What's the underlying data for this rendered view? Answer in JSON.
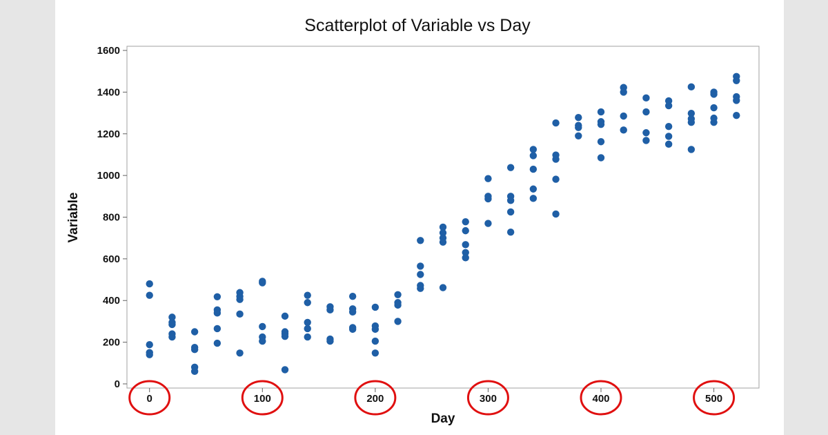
{
  "chart_data": {
    "type": "scatter",
    "title": "Scatterplot of Variable vs Day",
    "xlabel": "Day",
    "ylabel": "Variable",
    "xlim": [
      -20,
      540
    ],
    "ylim": [
      -20,
      1620
    ],
    "xticks": [
      0,
      100,
      200,
      300,
      400,
      500
    ],
    "yticks": [
      0,
      200,
      400,
      600,
      800,
      1000,
      1200,
      1400,
      1600
    ],
    "grid": false,
    "legend": "none",
    "marker_color": "#1f5fa6",
    "highlight_color": "#e01010",
    "highlighted_ticks": [
      0,
      100,
      200,
      300,
      400,
      500
    ],
    "points": [
      [
        0,
        480
      ],
      [
        0,
        425
      ],
      [
        0,
        188
      ],
      [
        0,
        150
      ],
      [
        0,
        140
      ],
      [
        20,
        320
      ],
      [
        20,
        295
      ],
      [
        20,
        285
      ],
      [
        20,
        240
      ],
      [
        20,
        225
      ],
      [
        40,
        250
      ],
      [
        40,
        175
      ],
      [
        40,
        165
      ],
      [
        40,
        80
      ],
      [
        40,
        60
      ],
      [
        60,
        418
      ],
      [
        60,
        355
      ],
      [
        60,
        340
      ],
      [
        60,
        265
      ],
      [
        60,
        195
      ],
      [
        80,
        438
      ],
      [
        80,
        420
      ],
      [
        80,
        405
      ],
      [
        80,
        335
      ],
      [
        80,
        148
      ],
      [
        100,
        492
      ],
      [
        100,
        485
      ],
      [
        100,
        275
      ],
      [
        100,
        225
      ],
      [
        100,
        205
      ],
      [
        120,
        325
      ],
      [
        120,
        250
      ],
      [
        120,
        240
      ],
      [
        120,
        228
      ],
      [
        120,
        68
      ],
      [
        140,
        425
      ],
      [
        140,
        390
      ],
      [
        140,
        295
      ],
      [
        140,
        265
      ],
      [
        140,
        225
      ],
      [
        160,
        370
      ],
      [
        160,
        355
      ],
      [
        160,
        215
      ],
      [
        160,
        205
      ],
      [
        180,
        420
      ],
      [
        180,
        360
      ],
      [
        180,
        345
      ],
      [
        180,
        270
      ],
      [
        180,
        262
      ],
      [
        200,
        368
      ],
      [
        200,
        278
      ],
      [
        200,
        262
      ],
      [
        200,
        205
      ],
      [
        200,
        148
      ],
      [
        220,
        428
      ],
      [
        220,
        390
      ],
      [
        220,
        378
      ],
      [
        220,
        300
      ],
      [
        240,
        688
      ],
      [
        240,
        565
      ],
      [
        240,
        525
      ],
      [
        240,
        472
      ],
      [
        240,
        458
      ],
      [
        260,
        752
      ],
      [
        260,
        725
      ],
      [
        260,
        700
      ],
      [
        260,
        680
      ],
      [
        260,
        462
      ],
      [
        280,
        778
      ],
      [
        280,
        735
      ],
      [
        280,
        668
      ],
      [
        280,
        630
      ],
      [
        280,
        605
      ],
      [
        300,
        985
      ],
      [
        300,
        900
      ],
      [
        300,
        888
      ],
      [
        300,
        770
      ],
      [
        320,
        1038
      ],
      [
        320,
        900
      ],
      [
        320,
        880
      ],
      [
        320,
        825
      ],
      [
        320,
        728
      ],
      [
        340,
        1125
      ],
      [
        340,
        1095
      ],
      [
        340,
        1030
      ],
      [
        340,
        935
      ],
      [
        340,
        890
      ],
      [
        360,
        1252
      ],
      [
        360,
        1098
      ],
      [
        360,
        1078
      ],
      [
        360,
        982
      ],
      [
        360,
        815
      ],
      [
        380,
        1278
      ],
      [
        380,
        1240
      ],
      [
        380,
        1230
      ],
      [
        380,
        1190
      ],
      [
        400,
        1305
      ],
      [
        400,
        1258
      ],
      [
        400,
        1245
      ],
      [
        400,
        1162
      ],
      [
        400,
        1085
      ],
      [
        420,
        1422
      ],
      [
        420,
        1400
      ],
      [
        420,
        1285
      ],
      [
        420,
        1218
      ],
      [
        440,
        1372
      ],
      [
        440,
        1305
      ],
      [
        440,
        1205
      ],
      [
        440,
        1168
      ],
      [
        460,
        1358
      ],
      [
        460,
        1335
      ],
      [
        460,
        1235
      ],
      [
        460,
        1188
      ],
      [
        460,
        1150
      ],
      [
        480,
        1425
      ],
      [
        480,
        1298
      ],
      [
        480,
        1272
      ],
      [
        480,
        1255
      ],
      [
        480,
        1125
      ],
      [
        500,
        1400
      ],
      [
        500,
        1390
      ],
      [
        500,
        1325
      ],
      [
        500,
        1275
      ],
      [
        500,
        1255
      ],
      [
        520,
        1475
      ],
      [
        520,
        1455
      ],
      [
        520,
        1378
      ],
      [
        520,
        1360
      ],
      [
        520,
        1288
      ]
    ]
  }
}
